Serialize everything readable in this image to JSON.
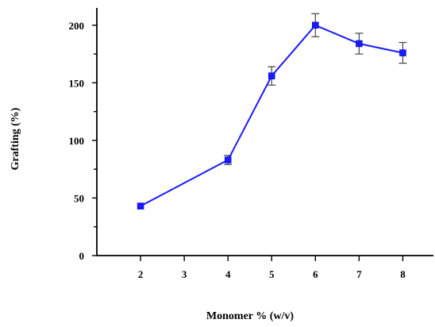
{
  "chart_data": {
    "type": "line",
    "title": "",
    "xlabel": "Monomer % (w/v)",
    "ylabel": "Grafting (%)",
    "xlim": [
      1,
      8.7
    ],
    "ylim": [
      0,
      215
    ],
    "x_ticks": [
      2,
      3,
      4,
      5,
      6,
      7,
      8
    ],
    "y_ticks": [
      0,
      50,
      100,
      150,
      200
    ],
    "grid": false,
    "legend": "none",
    "series_color": "#1a1aff",
    "series": [
      {
        "x": [
          2,
          4,
          5,
          6,
          7,
          8
        ],
        "y": [
          43,
          83,
          156,
          200,
          184,
          176
        ],
        "error": [
          0,
          4,
          8,
          10,
          9,
          9
        ]
      }
    ]
  }
}
